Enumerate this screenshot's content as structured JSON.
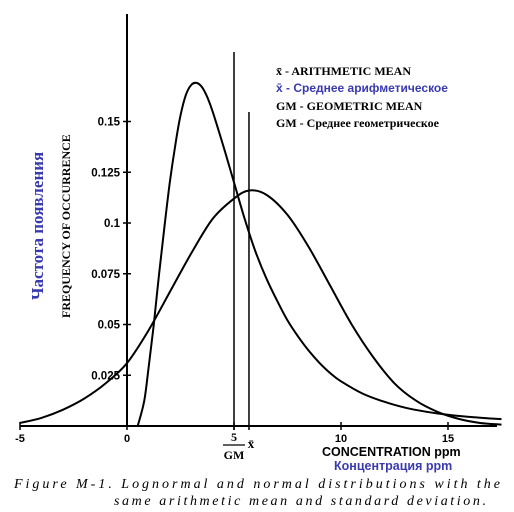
{
  "chart_data": {
    "type": "line",
    "xlabel": "CONCENTRATION ppm",
    "xlabel_ru": "Концентрация ppm",
    "ylabel": "FREQUENCY OF OCCURRENCE",
    "ylabel_ru": "Частота появления",
    "x_ticks": [
      "-5",
      "0",
      "5",
      "10",
      "15"
    ],
    "y_ticks": [
      "0.025",
      "0.05",
      "0.075",
      "0.1",
      "0.125",
      "0.15"
    ],
    "xlim": [
      -5,
      17.5
    ],
    "ylim": [
      0,
      0.175
    ],
    "grid": false,
    "series": [
      {
        "kind": "lognormal",
        "x": [
          0.5,
          0.8,
          1.0,
          1.25,
          1.5,
          1.75,
          2.0,
          2.25,
          2.5,
          2.75,
          3.0,
          3.25,
          3.5,
          3.75,
          4.0,
          4.5,
          5.0,
          5.5,
          6.0,
          6.5,
          7.0,
          7.5,
          8.0,
          8.5,
          9.0,
          9.5,
          10.0,
          11.0,
          12.0,
          13.0,
          14.0,
          15.0,
          16.0,
          17.0,
          17.5
        ],
        "y": [
          0.0,
          0.012,
          0.028,
          0.05,
          0.075,
          0.098,
          0.12,
          0.138,
          0.153,
          0.163,
          0.168,
          0.169,
          0.167,
          0.162,
          0.155,
          0.138,
          0.12,
          0.102,
          0.086,
          0.073,
          0.062,
          0.052,
          0.044,
          0.037,
          0.031,
          0.026,
          0.022,
          0.016,
          0.012,
          0.009,
          0.007,
          0.0055,
          0.0045,
          0.0037,
          0.0034
        ]
      },
      {
        "kind": "normal",
        "x": [
          -5.0,
          -4.0,
          -3.0,
          -2.0,
          -1.0,
          0.0,
          1.0,
          2.0,
          3.0,
          4.0,
          5.0,
          5.7,
          6.5,
          7.5,
          8.5,
          9.5,
          10.5,
          11.5,
          12.5,
          13.5,
          14.5,
          15.5,
          16.5,
          17.5
        ],
        "y": [
          0.0015,
          0.004,
          0.008,
          0.0135,
          0.021,
          0.031,
          0.047,
          0.066,
          0.085,
          0.102,
          0.112,
          0.116,
          0.114,
          0.104,
          0.088,
          0.069,
          0.05,
          0.034,
          0.021,
          0.0125,
          0.007,
          0.0035,
          0.0015,
          0.0007
        ]
      }
    ],
    "markers": [
      {
        "x": 5,
        "label_top": "5",
        "label_bottom": "GM"
      },
      {
        "x": 5.7,
        "label_bottom": "x̄"
      }
    ],
    "legend": {
      "placement": "top-right",
      "lines": [
        {
          "text": "x̄ - ARITHMETIC MEAN",
          "color": "#000000",
          "bold": true
        },
        {
          "text": "x̄ - Среднее арифметическое",
          "color": "#3a3ab0",
          "bold": true
        },
        {
          "text": "GM - GEOMETRIC MEAN",
          "color": "#000000",
          "bold": true
        },
        {
          "text": "GM - Среднее геометрическое",
          "color": "#000000",
          "bold": true
        }
      ]
    },
    "caption": {
      "line1": "Figure M-1. Lognormal and normal distributions with the",
      "line2": "same arithmetic mean and standard deviation."
    },
    "colors": {
      "axis": "#000000",
      "curves": "#000000",
      "russian_label": "#3a3ab0"
    }
  }
}
